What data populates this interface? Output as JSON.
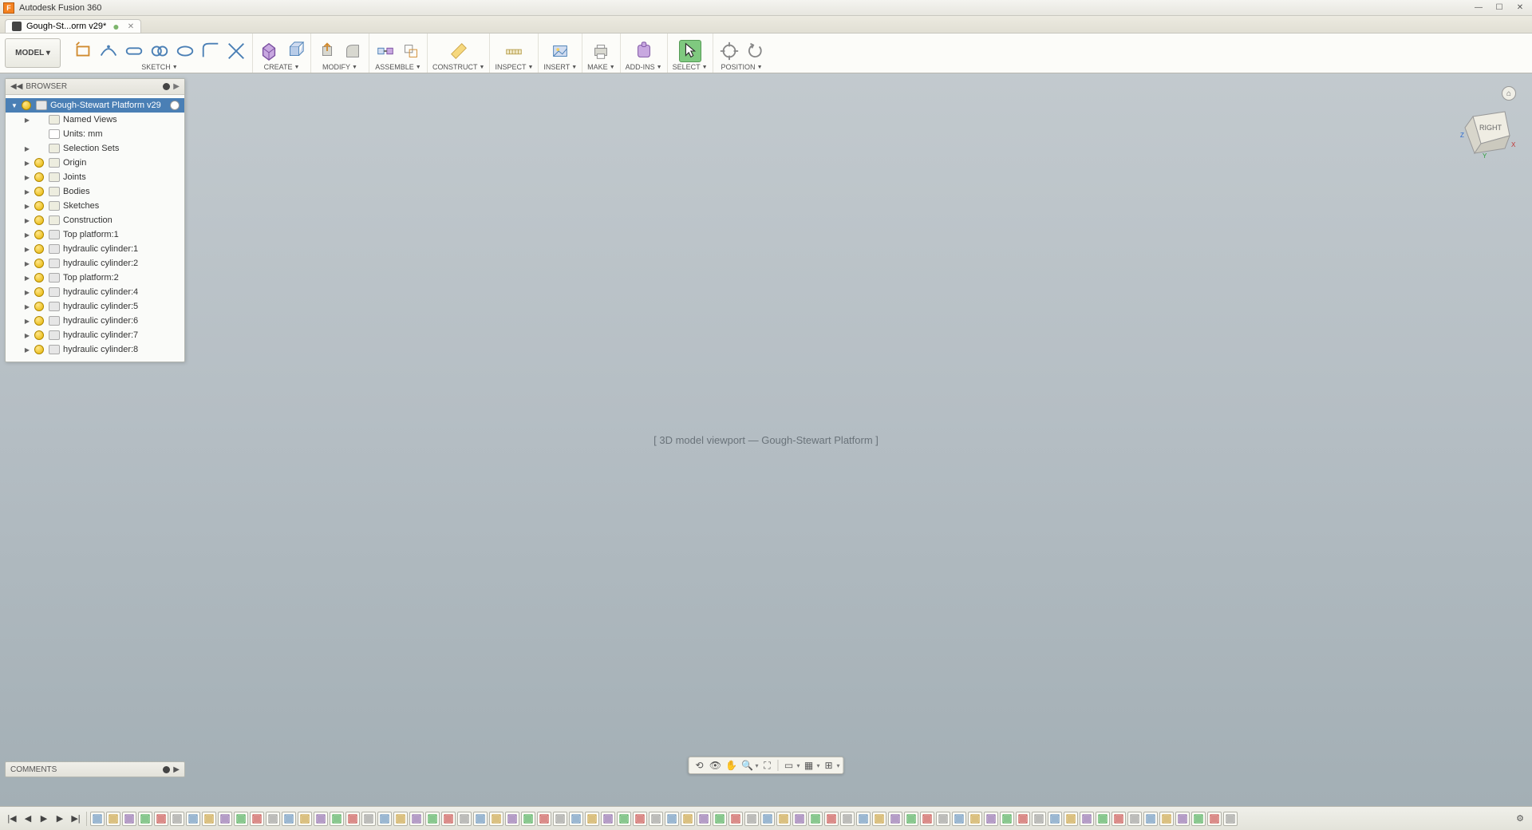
{
  "app_title": "Autodesk Fusion 360",
  "tab": {
    "label": "Gough-St...orm v29*",
    "dirty": true
  },
  "ribbon": {
    "model_button": "MODEL ▾",
    "groups": [
      {
        "label": "SKETCH",
        "icons": [
          "rect",
          "dim",
          "slot",
          "arc",
          "spline",
          "fillet",
          "trim"
        ]
      },
      {
        "label": "CREATE",
        "icons": [
          "extrude",
          "revolve"
        ]
      },
      {
        "label": "MODIFY",
        "icons": [
          "pushpull",
          "fillet3d"
        ]
      },
      {
        "label": "ASSEMBLE",
        "icons": [
          "joint",
          "asbuilt"
        ]
      },
      {
        "label": "CONSTRUCT",
        "icons": [
          "plane"
        ]
      },
      {
        "label": "INSPECT",
        "icons": [
          "measure"
        ]
      },
      {
        "label": "INSERT",
        "icons": [
          "decal"
        ]
      },
      {
        "label": "MAKE",
        "icons": [
          "print"
        ]
      },
      {
        "label": "ADD-INS",
        "icons": [
          "addins"
        ]
      },
      {
        "label": "SELECT",
        "icons": [
          "select"
        ],
        "selected": true
      },
      {
        "label": "POSITION",
        "icons": [
          "capture",
          "revert"
        ]
      }
    ]
  },
  "browser": {
    "title": "BROWSER",
    "root": "Gough-Stewart Platform v29",
    "nodes": [
      {
        "indent": 1,
        "tri": true,
        "bulb": false,
        "ico": "folder",
        "label": "Named Views"
      },
      {
        "indent": 1,
        "tri": false,
        "bulb": false,
        "ico": "page",
        "label": "Units: mm"
      },
      {
        "indent": 1,
        "tri": true,
        "bulb": false,
        "ico": "folder",
        "label": "Selection Sets"
      },
      {
        "indent": 1,
        "tri": true,
        "bulb": true,
        "ico": "folder",
        "label": "Origin"
      },
      {
        "indent": 1,
        "tri": true,
        "bulb": true,
        "ico": "folder",
        "label": "Joints"
      },
      {
        "indent": 1,
        "tri": true,
        "bulb": true,
        "ico": "folder",
        "label": "Bodies"
      },
      {
        "indent": 1,
        "tri": true,
        "bulb": true,
        "ico": "folder",
        "label": "Sketches"
      },
      {
        "indent": 1,
        "tri": true,
        "bulb": true,
        "ico": "folder",
        "label": "Construction"
      },
      {
        "indent": 1,
        "tri": true,
        "bulb": true,
        "ico": "comp",
        "label": "Top platform:1"
      },
      {
        "indent": 1,
        "tri": true,
        "bulb": true,
        "ico": "comp",
        "label": "hydraulic cylinder:1"
      },
      {
        "indent": 1,
        "tri": true,
        "bulb": true,
        "ico": "comp",
        "label": "hydraulic cylinder:2"
      },
      {
        "indent": 1,
        "tri": true,
        "bulb": true,
        "ico": "comp",
        "label": "Top platform:2"
      },
      {
        "indent": 1,
        "tri": true,
        "bulb": true,
        "ico": "comp",
        "label": "hydraulic cylinder:4"
      },
      {
        "indent": 1,
        "tri": true,
        "bulb": true,
        "ico": "comp",
        "label": "hydraulic cylinder:5"
      },
      {
        "indent": 1,
        "tri": true,
        "bulb": true,
        "ico": "comp",
        "label": "hydraulic cylinder:6"
      },
      {
        "indent": 1,
        "tri": true,
        "bulb": true,
        "ico": "comp",
        "label": "hydraulic cylinder:7"
      },
      {
        "indent": 1,
        "tri": true,
        "bulb": true,
        "ico": "comp",
        "label": "hydraulic cylinder:8"
      }
    ]
  },
  "comments": {
    "title": "COMMENTS"
  },
  "viewcube": {
    "face": "RIGHT",
    "axes": {
      "x": "X",
      "y": "Y",
      "z": "Z"
    }
  },
  "canvas_placeholder": "[ 3D model viewport — Gough-Stewart Platform ]",
  "navbar": [
    "orbit",
    "look",
    "pan",
    "zoom",
    "fit",
    "",
    "display",
    "grid",
    "multiview"
  ],
  "timeline": {
    "controls": [
      "first",
      "prev",
      "play",
      "next",
      "last"
    ],
    "step_count": 72,
    "gear": "gear"
  },
  "colors": {
    "accent_orange": "#f58220",
    "select_green": "#7fc97f",
    "browser_sel": "#4a7fb5",
    "bulb": "#e6b400"
  }
}
